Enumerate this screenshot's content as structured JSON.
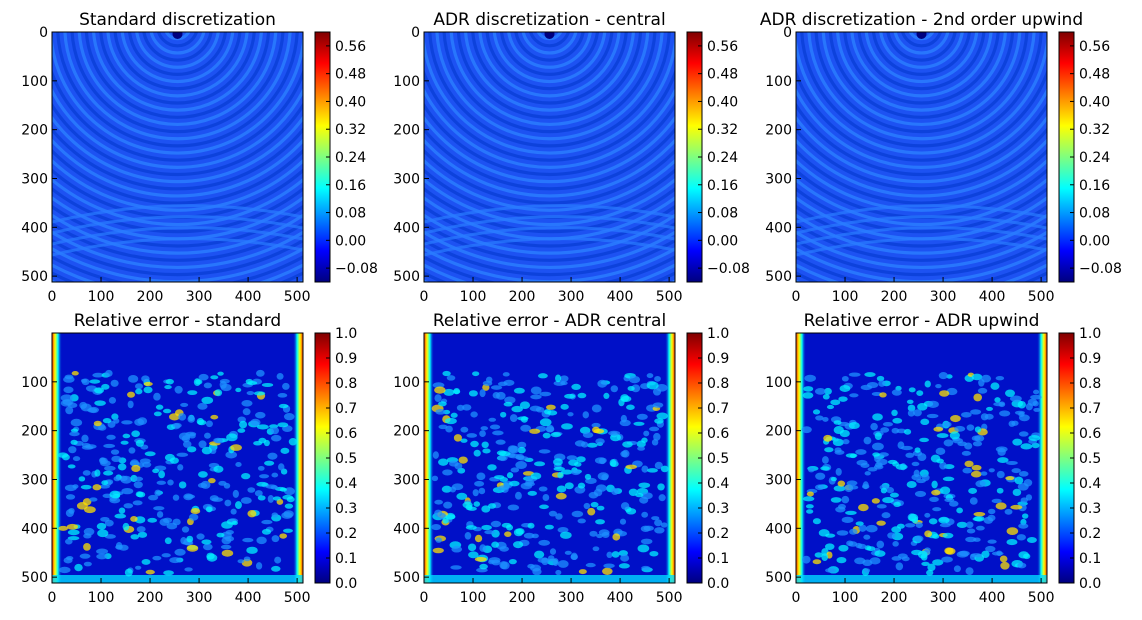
{
  "chart_data": [
    {
      "type": "heatmap",
      "title": "Standard discretization",
      "x_ticks": [
        0,
        100,
        200,
        300,
        400,
        500
      ],
      "y_ticks": [
        0,
        100,
        200,
        300,
        400,
        500
      ],
      "xlim": [
        0,
        512
      ],
      "ylim": [
        512,
        0
      ],
      "colorbar_ticks": [
        "0.56",
        "0.48",
        "0.40",
        "0.32",
        "0.24",
        "0.16",
        "0.08",
        "0.00",
        "−0.08"
      ],
      "colorbar_range": [
        -0.12,
        0.6
      ],
      "pattern": "wavefield"
    },
    {
      "type": "heatmap",
      "title": "ADR discretization - central",
      "x_ticks": [
        0,
        100,
        200,
        300,
        400,
        500
      ],
      "y_ticks": [
        0,
        100,
        200,
        300,
        400,
        500
      ],
      "xlim": [
        0,
        512
      ],
      "ylim": [
        512,
        0
      ],
      "colorbar_ticks": [
        "0.56",
        "0.48",
        "0.40",
        "0.32",
        "0.24",
        "0.16",
        "0.08",
        "0.00",
        "−0.08"
      ],
      "colorbar_range": [
        -0.12,
        0.6
      ],
      "pattern": "wavefield"
    },
    {
      "type": "heatmap",
      "title": "ADR discretization - 2nd order upwind",
      "x_ticks": [
        0,
        100,
        200,
        300,
        400,
        500
      ],
      "y_ticks": [
        0,
        100,
        200,
        300,
        400,
        500
      ],
      "xlim": [
        0,
        512
      ],
      "ylim": [
        512,
        0
      ],
      "colorbar_ticks": [
        "0.56",
        "0.48",
        "0.40",
        "0.32",
        "0.24",
        "0.16",
        "0.08",
        "0.00",
        "−0.08"
      ],
      "colorbar_range": [
        -0.12,
        0.6
      ],
      "pattern": "wavefield"
    },
    {
      "type": "heatmap",
      "title": "Relative error - standard",
      "x_ticks": [
        0,
        100,
        200,
        300,
        400,
        500
      ],
      "y_ticks": [
        100,
        200,
        300,
        400,
        500
      ],
      "xlim": [
        0,
        512
      ],
      "ylim": [
        512,
        0
      ],
      "colorbar_ticks": [
        "1.0",
        "0.9",
        "0.8",
        "0.7",
        "0.6",
        "0.5",
        "0.4",
        "0.3",
        "0.2",
        "0.1",
        "0.0"
      ],
      "colorbar_range": [
        0.0,
        1.0
      ],
      "pattern": "error"
    },
    {
      "type": "heatmap",
      "title": "Relative error - ADR central",
      "x_ticks": [
        0,
        100,
        200,
        300,
        400,
        500
      ],
      "y_ticks": [
        100,
        200,
        300,
        400,
        500
      ],
      "xlim": [
        0,
        512
      ],
      "ylim": [
        512,
        0
      ],
      "colorbar_ticks": [
        "1.0",
        "0.9",
        "0.8",
        "0.7",
        "0.6",
        "0.5",
        "0.4",
        "0.3",
        "0.2",
        "0.1",
        "0.0"
      ],
      "colorbar_range": [
        0.0,
        1.0
      ],
      "pattern": "error"
    },
    {
      "type": "heatmap",
      "title": "Relative error - ADR upwind",
      "x_ticks": [
        0,
        100,
        200,
        300,
        400,
        500
      ],
      "y_ticks": [
        100,
        200,
        300,
        400,
        500
      ],
      "xlim": [
        0,
        512
      ],
      "ylim": [
        512,
        0
      ],
      "colorbar_ticks": [
        "1.0",
        "0.9",
        "0.8",
        "0.7",
        "0.6",
        "0.5",
        "0.4",
        "0.3",
        "0.2",
        "0.1",
        "0.0"
      ],
      "colorbar_range": [
        0.0,
        1.0
      ],
      "pattern": "error"
    }
  ],
  "colormap": [
    "#00007f",
    "#0000ff",
    "#007fff",
    "#00ffff",
    "#7fff7f",
    "#ffff00",
    "#ff7f00",
    "#ff0000",
    "#7f0000"
  ]
}
